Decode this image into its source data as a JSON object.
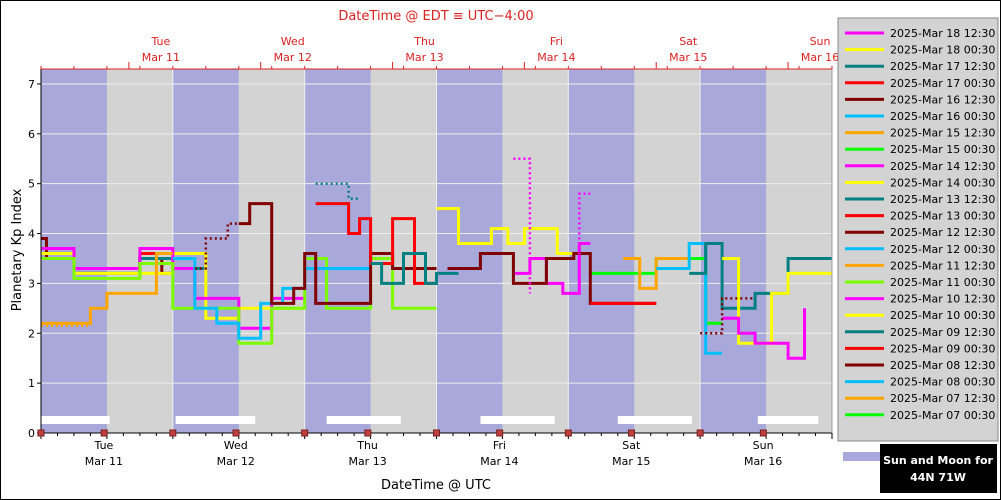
{
  "chart_data": {
    "type": "line",
    "title": "DateTime @ EDT ≡ UTC−4:00",
    "xlabel": "DateTime @ UTC",
    "ylabel": "Planetary Kp Index",
    "ylim": [
      0,
      7.3
    ],
    "yticks": [
      "0",
      "1",
      "2",
      "3",
      "4",
      "5",
      "6",
      "7"
    ],
    "xlim_hours": [
      0,
      144
    ],
    "bottom_axis": [
      {
        "day": "Tue",
        "date": "Mar 11"
      },
      {
        "day": "Wed",
        "date": "Mar 12"
      },
      {
        "day": "Thu",
        "date": "Mar 13"
      },
      {
        "day": "Fri",
        "date": "Mar 14"
      },
      {
        "day": "Sat",
        "date": "Mar 15"
      },
      {
        "day": "Sun",
        "date": "Mar 16"
      }
    ],
    "top_axis": [
      {
        "day": "Tue",
        "date": "Mar 11"
      },
      {
        "day": "Wed",
        "date": "Mar 12"
      },
      {
        "day": "Thu",
        "date": "Mar 13"
      },
      {
        "day": "Fri",
        "date": "Mar 14"
      },
      {
        "day": "Sat",
        "date": "Mar 15"
      },
      {
        "day": "Sun",
        "date": "Mar 16"
      }
    ],
    "night_bands_hours": [
      [
        0,
        12
      ],
      [
        24,
        36
      ],
      [
        48,
        60
      ],
      [
        72,
        84
      ],
      [
        96,
        108
      ],
      [
        120,
        132
      ]
    ],
    "moon_bars_hours": [
      [
        0,
        12.5
      ],
      [
        24.5,
        39
      ],
      [
        52,
        65.5
      ],
      [
        80,
        93.5
      ],
      [
        105,
        118.5
      ],
      [
        130.5,
        141.5
      ]
    ],
    "grid": true,
    "legend_position": "right",
    "colors": {
      "plot_background": "#d3d3d3",
      "night_band": "#a8a8da",
      "title_red": "#dd2222",
      "frame": "#000000"
    },
    "series": [
      {
        "name": "2025-Mar 18 12:30",
        "color": "#ff00ff",
        "values": [
          [
            124,
            2.3
          ],
          [
            127,
            2.3
          ],
          [
            127,
            2
          ],
          [
            130,
            2
          ],
          [
            130,
            1.8
          ],
          [
            136,
            1.8
          ],
          [
            136,
            1.5
          ],
          [
            139,
            1.5
          ],
          [
            139,
            2.5
          ]
        ]
      },
      {
        "name": "2025-Mar 18 00:30",
        "color": "#ffff00",
        "values": [
          [
            124,
            3.5
          ],
          [
            127,
            3.5
          ],
          [
            127,
            1.8
          ],
          [
            133,
            1.8
          ],
          [
            133,
            2.8
          ],
          [
            136,
            2.8
          ],
          [
            136,
            3.2
          ],
          [
            144,
            3.2
          ]
        ]
      },
      {
        "name": "2025-Mar 17 12:30",
        "color": "#008080",
        "values": [
          [
            118,
            3.2
          ],
          [
            121,
            3.2
          ],
          [
            121,
            3.8
          ],
          [
            124,
            3.8
          ],
          [
            124,
            2.5
          ],
          [
            130,
            2.5
          ],
          [
            130,
            2.8
          ],
          [
            136,
            2.8
          ],
          [
            136,
            3.5
          ],
          [
            144,
            3.5
          ]
        ]
      },
      {
        "name": "2025-Mar 17 00:30",
        "color": "#ff0000",
        "values": [
          [
            100,
            2.6
          ],
          [
            112,
            2.6
          ]
        ]
      },
      {
        "name": "2025-Mar 16 12:30",
        "color": "#800000",
        "values": [
          [
            74,
            3.3
          ],
          [
            80,
            3.3
          ],
          [
            80,
            3.6
          ],
          [
            86,
            3.6
          ],
          [
            86,
            3
          ],
          [
            92,
            3
          ],
          [
            92,
            3.5
          ],
          [
            97,
            3.5
          ],
          [
            97,
            3.6
          ],
          [
            100,
            3.6
          ],
          [
            100,
            2.6
          ],
          [
            112,
            2.6
          ]
        ]
      },
      {
        "name": "2025-Mar 16 00:30",
        "color": "#00bfff",
        "values": [
          [
            112,
            3.3
          ],
          [
            118,
            3.3
          ],
          [
            118,
            3.8
          ],
          [
            121,
            3.8
          ],
          [
            121,
            1.6
          ],
          [
            124,
            1.6
          ]
        ]
      },
      {
        "name": "2025-Mar 15 12:30",
        "color": "#ffa500",
        "values": [
          [
            106,
            3.5
          ],
          [
            109,
            3.5
          ],
          [
            109,
            2.9
          ],
          [
            112,
            2.9
          ],
          [
            112,
            3.5
          ],
          [
            118,
            3.5
          ]
        ]
      },
      {
        "name": "2025-Mar 15 00:30",
        "color": "#00ff00",
        "values": [
          [
            100,
            3.2
          ],
          [
            112,
            3.2
          ],
          [
            112,
            3.5
          ],
          [
            121,
            3.5
          ],
          [
            121,
            2.2
          ],
          [
            124,
            2.2
          ]
        ]
      },
      {
        "name": "2025-Mar 14 12:30",
        "color": "#ff00ff",
        "values": [
          [
            86,
            3.2
          ],
          [
            89,
            3.2
          ],
          [
            89,
            3.5
          ],
          [
            92,
            3.5
          ],
          [
            92,
            3
          ],
          [
            95,
            3
          ],
          [
            95,
            2.8
          ],
          [
            98,
            2.8
          ],
          [
            98,
            3.8
          ],
          [
            100,
            3.8
          ]
        ]
      },
      {
        "name": "2025-Mar 14 00:30",
        "color": "#ffff00",
        "values": [
          [
            72,
            4.5
          ],
          [
            76,
            4.5
          ],
          [
            76,
            3.8
          ],
          [
            82,
            3.8
          ],
          [
            82,
            4.1
          ],
          [
            85,
            4.1
          ],
          [
            85,
            3.8
          ],
          [
            88,
            3.8
          ],
          [
            88,
            4.1
          ],
          [
            94,
            4.1
          ],
          [
            94,
            3.6
          ],
          [
            100,
            3.6
          ]
        ]
      },
      {
        "name": "2025-Mar 13 12:30",
        "color": "#008080",
        "values": [
          [
            60,
            3.4
          ],
          [
            62,
            3.4
          ],
          [
            62,
            3
          ],
          [
            66,
            3
          ],
          [
            66,
            3.6
          ],
          [
            70,
            3.6
          ],
          [
            70,
            3
          ],
          [
            72,
            3
          ],
          [
            72,
            3.2
          ],
          [
            76,
            3.2
          ]
        ]
      },
      {
        "name": "2025-Mar 13 00:30",
        "color": "#ff0000",
        "values": [
          [
            50,
            4.6
          ],
          [
            56,
            4.6
          ],
          [
            56,
            4
          ],
          [
            58,
            4
          ],
          [
            58,
            4.3
          ],
          [
            60,
            4.3
          ],
          [
            60,
            3.4
          ],
          [
            64,
            3.4
          ],
          [
            64,
            4.3
          ],
          [
            68,
            4.3
          ],
          [
            68,
            3
          ],
          [
            72,
            3
          ]
        ]
      },
      {
        "name": "2025-Mar 12 12:30",
        "color": "#800000",
        "values": [
          [
            36,
            4.2
          ],
          [
            38,
            4.2
          ],
          [
            38,
            4.6
          ],
          [
            42,
            4.6
          ],
          [
            42,
            2.6
          ],
          [
            46,
            2.6
          ],
          [
            46,
            2.9
          ],
          [
            48,
            2.9
          ],
          [
            48,
            3.6
          ],
          [
            50,
            3.6
          ],
          [
            50,
            2.6
          ],
          [
            60,
            2.6
          ],
          [
            60,
            3.6
          ],
          [
            64,
            3.6
          ],
          [
            64,
            3.3
          ],
          [
            72,
            3.3
          ]
        ]
      },
      {
        "name": "2025-Mar 12 00:30",
        "color": "#00bfff",
        "values": [
          [
            24,
            3.5
          ],
          [
            28,
            3.5
          ],
          [
            28,
            2.5
          ],
          [
            32,
            2.5
          ],
          [
            32,
            2.2
          ],
          [
            36,
            2.2
          ],
          [
            36,
            1.9
          ],
          [
            40,
            1.9
          ],
          [
            40,
            2.6
          ],
          [
            44,
            2.6
          ],
          [
            44,
            2.9
          ],
          [
            48,
            2.9
          ],
          [
            48,
            3.3
          ],
          [
            60,
            3.3
          ]
        ]
      },
      {
        "name": "2025-Mar 11 12:30",
        "color": "#ffa500",
        "values": [
          [
            0,
            2.2
          ],
          [
            9,
            2.2
          ],
          [
            9,
            2.5
          ],
          [
            12,
            2.5
          ],
          [
            12,
            2.8
          ],
          [
            21,
            2.8
          ],
          [
            21,
            3.6
          ],
          [
            24,
            3.6
          ]
        ]
      },
      {
        "name": "2025-Mar 11 00:30",
        "color": "#7cfc00",
        "values": [
          [
            0,
            3.5
          ],
          [
            6,
            3.5
          ],
          [
            6,
            3.1
          ],
          [
            18,
            3.1
          ],
          [
            18,
            3.4
          ],
          [
            24,
            3.4
          ],
          [
            24,
            2.5
          ],
          [
            36,
            2.5
          ],
          [
            36,
            1.8
          ],
          [
            42,
            1.8
          ],
          [
            42,
            2.5
          ],
          [
            48,
            2.5
          ],
          [
            48,
            3.5
          ],
          [
            52,
            3.5
          ],
          [
            52,
            2.5
          ],
          [
            60,
            2.5
          ],
          [
            60,
            3.5
          ],
          [
            64,
            3.5
          ],
          [
            64,
            2.5
          ],
          [
            72,
            2.5
          ]
        ]
      },
      {
        "name": "2025-Mar 10 12:30",
        "color": "#ff00ff",
        "values": [
          [
            0,
            3.7
          ],
          [
            6,
            3.7
          ],
          [
            6,
            3.3
          ],
          [
            18,
            3.3
          ],
          [
            18,
            3.7
          ],
          [
            24,
            3.7
          ],
          [
            24,
            3.3
          ],
          [
            28,
            3.3
          ],
          [
            28,
            2.7
          ],
          [
            36,
            2.7
          ],
          [
            36,
            2.1
          ],
          [
            42,
            2.1
          ],
          [
            42,
            2.7
          ],
          [
            48,
            2.7
          ]
        ]
      },
      {
        "name": "2025-Mar 10 00:30",
        "color": "#ffff00",
        "values": [
          [
            0,
            3.6
          ],
          [
            6,
            3.6
          ],
          [
            6,
            3.2
          ],
          [
            12,
            3.2
          ],
          [
            12,
            3.2
          ],
          [
            24,
            3.2
          ],
          [
            24,
            3.6
          ],
          [
            30,
            3.6
          ],
          [
            30,
            2.3
          ],
          [
            36,
            2.3
          ],
          [
            36,
            2.5
          ],
          [
            48,
            2.5
          ]
        ]
      },
      {
        "name": "2025-Mar 09 12:30",
        "color": "#008080",
        "values": [
          [
            0,
            3.6
          ],
          [
            6,
            3.6
          ],
          [
            6,
            3.2
          ],
          [
            18,
            3.2
          ],
          [
            18,
            3.5
          ],
          [
            24,
            3.5
          ],
          [
            24,
            3.3
          ],
          [
            30,
            3.3
          ]
        ]
      },
      {
        "name": "2025-Mar 09 00:30",
        "color": "#ff0000",
        "values": [
          [
            0,
            3.7
          ],
          [
            6,
            3.7
          ],
          [
            6,
            3.3
          ],
          [
            18,
            3.3
          ],
          [
            18,
            3.6
          ],
          [
            24,
            3.6
          ]
        ]
      },
      {
        "name": "2025-Mar 08 12:30",
        "color": "#800000",
        "values": [
          [
            0,
            3.9
          ],
          [
            1,
            3.9
          ],
          [
            1,
            3.5
          ],
          [
            6,
            3.5
          ],
          [
            6,
            3.2
          ],
          [
            18,
            3.2
          ],
          [
            18,
            3.5
          ],
          [
            22,
            3.5
          ],
          [
            22,
            3.2
          ],
          [
            24,
            3.2
          ]
        ]
      },
      {
        "name": "2025-Mar 08 00:30",
        "color": "#00bfff",
        "values": []
      },
      {
        "name": "2025-Mar 07 12:30",
        "color": "#ffa500",
        "values": []
      },
      {
        "name": "2025-Mar 07 00:30",
        "color": "#00ff00",
        "values": []
      }
    ],
    "dotted_segments": [
      {
        "color": "#ff00ff",
        "values": [
          [
            86,
            5.5
          ],
          [
            89,
            5.5
          ],
          [
            89,
            2.8
          ]
        ]
      },
      {
        "color": "#ff00ff",
        "values": [
          [
            96,
            2.8
          ],
          [
            98,
            2.8
          ],
          [
            98,
            4.8
          ],
          [
            100,
            4.8
          ]
        ]
      },
      {
        "color": "#008080",
        "values": [
          [
            50,
            5
          ],
          [
            56,
            5
          ],
          [
            56,
            4.7
          ],
          [
            58,
            4.7
          ]
        ]
      },
      {
        "color": "#800000",
        "values": [
          [
            28,
            3.3
          ],
          [
            30,
            3.3
          ],
          [
            30,
            3.9
          ],
          [
            34,
            3.9
          ],
          [
            34,
            4.2
          ],
          [
            36,
            4.2
          ]
        ]
      },
      {
        "color": "#800000",
        "values": [
          [
            120,
            2
          ],
          [
            124,
            2
          ],
          [
            124,
            2.7
          ],
          [
            130,
            2.7
          ]
        ]
      },
      {
        "color": "#ffa500",
        "values": [
          [
            0,
            2.15
          ],
          [
            9,
            2.15
          ],
          [
            9,
            2.5
          ],
          [
            12,
            2.5
          ]
        ]
      },
      {
        "color": "#ffa500",
        "values": [
          [
            106,
            3.5
          ],
          [
            109,
            3.5
          ]
        ]
      }
    ],
    "info_box": {
      "line1": "Sun and Moon for",
      "line2": "44N 71W"
    }
  }
}
